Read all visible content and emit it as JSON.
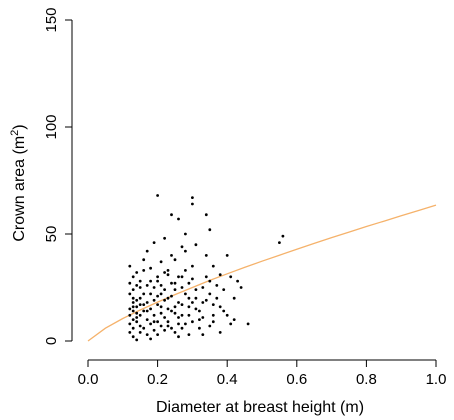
{
  "chart_data": {
    "type": "scatter",
    "xlabel": "Diameter at breast height (m)",
    "ylabel": "Crown area (m",
    "ylabel_sup": "2",
    "ylabel_close": ")",
    "xlim": [
      0,
      1.0
    ],
    "ylim": [
      0,
      150
    ],
    "x_ticks": [
      "0.0",
      "0.2",
      "0.4",
      "0.6",
      "0.8",
      "1.0"
    ],
    "y_ticks": [
      "0",
      "50",
      "100",
      "150"
    ],
    "grid": false,
    "legend": "none",
    "colors": {
      "points": "#000000",
      "curve": "#f5b26b",
      "axis": "#000000"
    },
    "series": [
      {
        "kind": "points",
        "points": [
          [
            0.12,
            8
          ],
          [
            0.13,
            10
          ],
          [
            0.13,
            14
          ],
          [
            0.12,
            12
          ],
          [
            0.14,
            11
          ],
          [
            0.13,
            6
          ],
          [
            0.14,
            9
          ],
          [
            0.12,
            15
          ],
          [
            0.13,
            18
          ],
          [
            0.14,
            13
          ],
          [
            0.15,
            7
          ],
          [
            0.15,
            12
          ],
          [
            0.12,
            4
          ],
          [
            0.13,
            2
          ],
          [
            0.14,
            16
          ],
          [
            0.13,
            20
          ],
          [
            0.12,
            22
          ],
          [
            0.14,
            26
          ],
          [
            0.13,
            30
          ],
          [
            0.12,
            35
          ],
          [
            0.14,
            32
          ],
          [
            0.15,
            28
          ],
          [
            0.16,
            33
          ],
          [
            0.15,
            20
          ],
          [
            0.16,
            14
          ],
          [
            0.17,
            10
          ],
          [
            0.16,
            6
          ],
          [
            0.17,
            3
          ],
          [
            0.18,
            8
          ],
          [
            0.17,
            18
          ],
          [
            0.18,
            22
          ],
          [
            0.19,
            12
          ],
          [
            0.18,
            15
          ],
          [
            0.19,
            5
          ],
          [
            0.2,
            9
          ],
          [
            0.19,
            25
          ],
          [
            0.2,
            17
          ],
          [
            0.21,
            13
          ],
          [
            0.2,
            28
          ],
          [
            0.21,
            22
          ],
          [
            0.22,
            11
          ],
          [
            0.21,
            7
          ],
          [
            0.22,
            19
          ],
          [
            0.23,
            15
          ],
          [
            0.22,
            24
          ],
          [
            0.23,
            9
          ],
          [
            0.24,
            21
          ],
          [
            0.23,
            33
          ],
          [
            0.25,
            13
          ],
          [
            0.24,
            6
          ],
          [
            0.25,
            27
          ],
          [
            0.26,
            18
          ],
          [
            0.25,
            38
          ],
          [
            0.27,
            12
          ],
          [
            0.26,
            8
          ],
          [
            0.28,
            22
          ],
          [
            0.27,
            30
          ],
          [
            0.29,
            16
          ],
          [
            0.28,
            42
          ],
          [
            0.3,
            9
          ],
          [
            0.29,
            27
          ],
          [
            0.31,
            20
          ],
          [
            0.3,
            35
          ],
          [
            0.32,
            14
          ],
          [
            0.31,
            45
          ],
          [
            0.33,
            25
          ],
          [
            0.32,
            10
          ],
          [
            0.34,
            30
          ],
          [
            0.33,
            18
          ],
          [
            0.35,
            22
          ],
          [
            0.34,
            40
          ],
          [
            0.36,
            12
          ],
          [
            0.35,
            28
          ],
          [
            0.37,
            20
          ],
          [
            0.38,
            16
          ],
          [
            0.36,
            35
          ],
          [
            0.39,
            24
          ],
          [
            0.4,
            12
          ],
          [
            0.41,
            30
          ],
          [
            0.4,
            40
          ],
          [
            0.42,
            20
          ],
          [
            0.41,
            8
          ],
          [
            0.43,
            28
          ],
          [
            0.44,
            25
          ],
          [
            0.46,
            8
          ],
          [
            0.2,
            68
          ],
          [
            0.3,
            67
          ],
          [
            0.3,
            64
          ],
          [
            0.24,
            59
          ],
          [
            0.34,
            59
          ],
          [
            0.26,
            57
          ],
          [
            0.28,
            50
          ],
          [
            0.22,
            48
          ],
          [
            0.35,
            52
          ],
          [
            0.19,
            46
          ],
          [
            0.17,
            42
          ],
          [
            0.24,
            40
          ],
          [
            0.27,
            44
          ],
          [
            0.21,
            37
          ],
          [
            0.18,
            34
          ],
          [
            0.16,
            38
          ],
          [
            0.23,
            31
          ],
          [
            0.2,
            30
          ],
          [
            0.15,
            25
          ],
          [
            0.28,
            33
          ],
          [
            0.3,
            29
          ],
          [
            0.25,
            24
          ],
          [
            0.22,
            5
          ],
          [
            0.26,
            2
          ],
          [
            0.18,
            1
          ],
          [
            0.14,
            0.5
          ],
          [
            0.29,
            3
          ],
          [
            0.32,
            6
          ],
          [
            0.36,
            9
          ],
          [
            0.38,
            4
          ],
          [
            0.33,
            3
          ],
          [
            0.16,
            17
          ],
          [
            0.17,
            26
          ],
          [
            0.19,
            19
          ],
          [
            0.21,
            16
          ],
          [
            0.23,
            20
          ],
          [
            0.24,
            14
          ],
          [
            0.26,
            11
          ],
          [
            0.27,
            17
          ],
          [
            0.28,
            8
          ],
          [
            0.29,
            12
          ],
          [
            0.31,
            15
          ],
          [
            0.33,
            11
          ],
          [
            0.35,
            7
          ],
          [
            0.37,
            26
          ],
          [
            0.39,
            14
          ],
          [
            0.42,
            10
          ],
          [
            0.55,
            46
          ],
          [
            0.56,
            49
          ],
          [
            0.12,
            27
          ],
          [
            0.13,
            24
          ],
          [
            0.15,
            4
          ],
          [
            0.16,
            22
          ],
          [
            0.18,
            28
          ],
          [
            0.2,
            21
          ],
          [
            0.21,
            26
          ],
          [
            0.22,
            32
          ],
          [
            0.24,
            27
          ],
          [
            0.25,
            16
          ],
          [
            0.26,
            30
          ],
          [
            0.27,
            25
          ],
          [
            0.3,
            18
          ],
          [
            0.31,
            24
          ],
          [
            0.34,
            19
          ],
          [
            0.36,
            17
          ],
          [
            0.38,
            31
          ],
          [
            0.13,
            16
          ],
          [
            0.14,
            19
          ],
          [
            0.15,
            17
          ],
          [
            0.17,
            14
          ],
          [
            0.19,
            9
          ],
          [
            0.2,
            3
          ],
          [
            0.23,
            7
          ],
          [
            0.25,
            4
          ],
          [
            0.27,
            6
          ],
          [
            0.29,
            20
          ]
        ]
      },
      {
        "kind": "line",
        "x": [
          0.0,
          0.05,
          0.1,
          0.15,
          0.2,
          0.25,
          0.3,
          0.35,
          0.4,
          0.45,
          0.5,
          0.55,
          0.6,
          0.65,
          0.7,
          0.75,
          0.8,
          0.85,
          0.9,
          0.95,
          1.0
        ],
        "y": [
          0,
          6,
          10.5,
          14.5,
          18.2,
          21.7,
          25,
          28.3,
          31.4,
          34.4,
          37.3,
          40.1,
          42.9,
          45.6,
          48.3,
          50.9,
          53.5,
          56,
          58.5,
          61,
          63.5
        ]
      }
    ]
  }
}
